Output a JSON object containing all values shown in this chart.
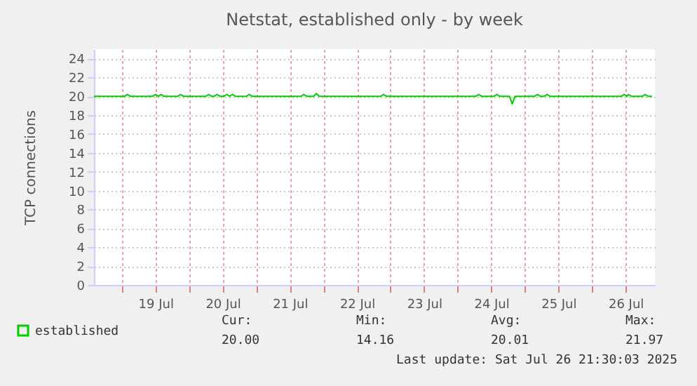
{
  "chart_data": {
    "type": "line",
    "title": "Netstat, established only - by week",
    "ylabel": "TCP connections",
    "xlim": [
      "2025-07-18T14:00",
      "2025-07-26T22:30"
    ],
    "xticks": [
      {
        "value": "2025-07-19T00:00",
        "label": null
      },
      {
        "value": "2025-07-19T12:00",
        "label": "19 Jul"
      },
      {
        "value": "2025-07-20T00:00",
        "label": null
      },
      {
        "value": "2025-07-20T12:00",
        "label": "20 Jul"
      },
      {
        "value": "2025-07-21T00:00",
        "label": null
      },
      {
        "value": "2025-07-21T12:00",
        "label": "21 Jul"
      },
      {
        "value": "2025-07-22T00:00",
        "label": null
      },
      {
        "value": "2025-07-22T12:00",
        "label": "22 Jul"
      },
      {
        "value": "2025-07-23T00:00",
        "label": null
      },
      {
        "value": "2025-07-23T12:00",
        "label": "23 Jul"
      },
      {
        "value": "2025-07-24T00:00",
        "label": null
      },
      {
        "value": "2025-07-24T12:00",
        "label": "24 Jul"
      },
      {
        "value": "2025-07-25T00:00",
        "label": null
      },
      {
        "value": "2025-07-25T12:00",
        "label": "25 Jul"
      },
      {
        "value": "2025-07-26T00:00",
        "label": null
      },
      {
        "value": "2025-07-26T12:00",
        "label": "26 Jul"
      }
    ],
    "ylim": [
      0,
      25
    ],
    "yticks": [
      0,
      2,
      4,
      6,
      8,
      10,
      12,
      14,
      16,
      18,
      20,
      22,
      24
    ],
    "grid": true,
    "legend": "bottom left",
    "marker": "none",
    "line_style": "solid",
    "x": [
      "2025-07-18T14:00",
      "2025-07-19T01:00",
      "2025-07-19T02:00",
      "2025-07-19T03:00",
      "2025-07-19T11:00",
      "2025-07-19T12:00",
      "2025-07-19T13:00",
      "2025-07-19T14:00",
      "2025-07-19T15:00",
      "2025-07-19T16:00",
      "2025-07-19T20:00",
      "2025-07-19T21:00",
      "2025-07-19T22:00",
      "2025-07-20T06:00",
      "2025-07-20T07:00",
      "2025-07-20T08:00",
      "2025-07-20T09:00",
      "2025-07-20T10:00",
      "2025-07-20T11:00",
      "2025-07-20T12:30",
      "2025-07-20T13:30",
      "2025-07-20T14:30",
      "2025-07-20T15:30",
      "2025-07-20T16:30",
      "2025-07-20T17:30",
      "2025-07-20T20:30",
      "2025-07-20T21:30",
      "2025-07-20T22:30",
      "2025-07-21T16:00",
      "2025-07-21T17:00",
      "2025-07-21T18:00",
      "2025-07-21T20:30",
      "2025-07-21T21:30",
      "2025-07-21T22:30",
      "2025-07-22T20:30",
      "2025-07-22T21:30",
      "2025-07-22T22:30",
      "2025-07-24T06:30",
      "2025-07-24T07:30",
      "2025-07-24T08:30",
      "2025-07-24T13:00",
      "2025-07-24T14:00",
      "2025-07-24T15:00",
      "2025-07-24T18:30",
      "2025-07-24T19:30",
      "2025-07-24T20:30",
      "2025-07-25T03:30",
      "2025-07-25T04:30",
      "2025-07-25T05:30",
      "2025-07-25T07:00",
      "2025-07-25T08:00",
      "2025-07-25T09:00",
      "2025-07-26T10:30",
      "2025-07-26T11:30",
      "2025-07-26T12:30",
      "2025-07-26T13:00",
      "2025-07-26T14:00",
      "2025-07-26T18:00",
      "2025-07-26T19:00",
      "2025-07-26T20:00",
      "2025-07-26T21:30"
    ],
    "series": [
      {
        "name": "established",
        "color": "#00cc00",
        "values": [
          20,
          20,
          20.2,
          20,
          20,
          20.2,
          20,
          20.2,
          20,
          20,
          20,
          20.2,
          20,
          20,
          20.2,
          20,
          20,
          20.2,
          20,
          20,
          20.2,
          20,
          20.2,
          20,
          20,
          20,
          20.2,
          20,
          20,
          20.2,
          20,
          20,
          20.3,
          20,
          20,
          20.2,
          20,
          20,
          20.2,
          20,
          20,
          20.2,
          20,
          20,
          19.2,
          20,
          20,
          20.2,
          20,
          20,
          20.2,
          20,
          20,
          20.2,
          20,
          20.2,
          20,
          20,
          20.2,
          20,
          20
        ]
      }
    ],
    "annotations": [
      "Cur:",
      "20.00",
      "Min:",
      "14.16",
      "Avg:",
      "20.01",
      "Max:",
      "21.97",
      "Last update: Sat Jul 26 21:30:03 2025"
    ]
  }
}
